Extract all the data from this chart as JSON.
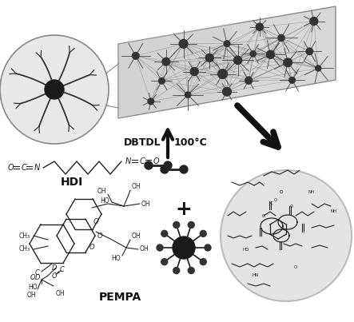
{
  "bg_color": "#ffffff",
  "fig_width": 4.43,
  "fig_height": 4.03,
  "dpi": 100,
  "dbtdl_label": "DBTDL",
  "temp_label": "100°C",
  "hdi_label": "HDI",
  "pempa_label": "PEMPA",
  "plus_label": "+",
  "label_color": "#111111",
  "structure_color": "#222222",
  "node_color": "#333333",
  "arm_color": "#555555",
  "box_face": "#e0e0e0",
  "box_edge": "#999999",
  "zoom_face": "#e8e8e8",
  "res_face": "#e2e2e2",
  "res_edge": "#aaaaaa"
}
